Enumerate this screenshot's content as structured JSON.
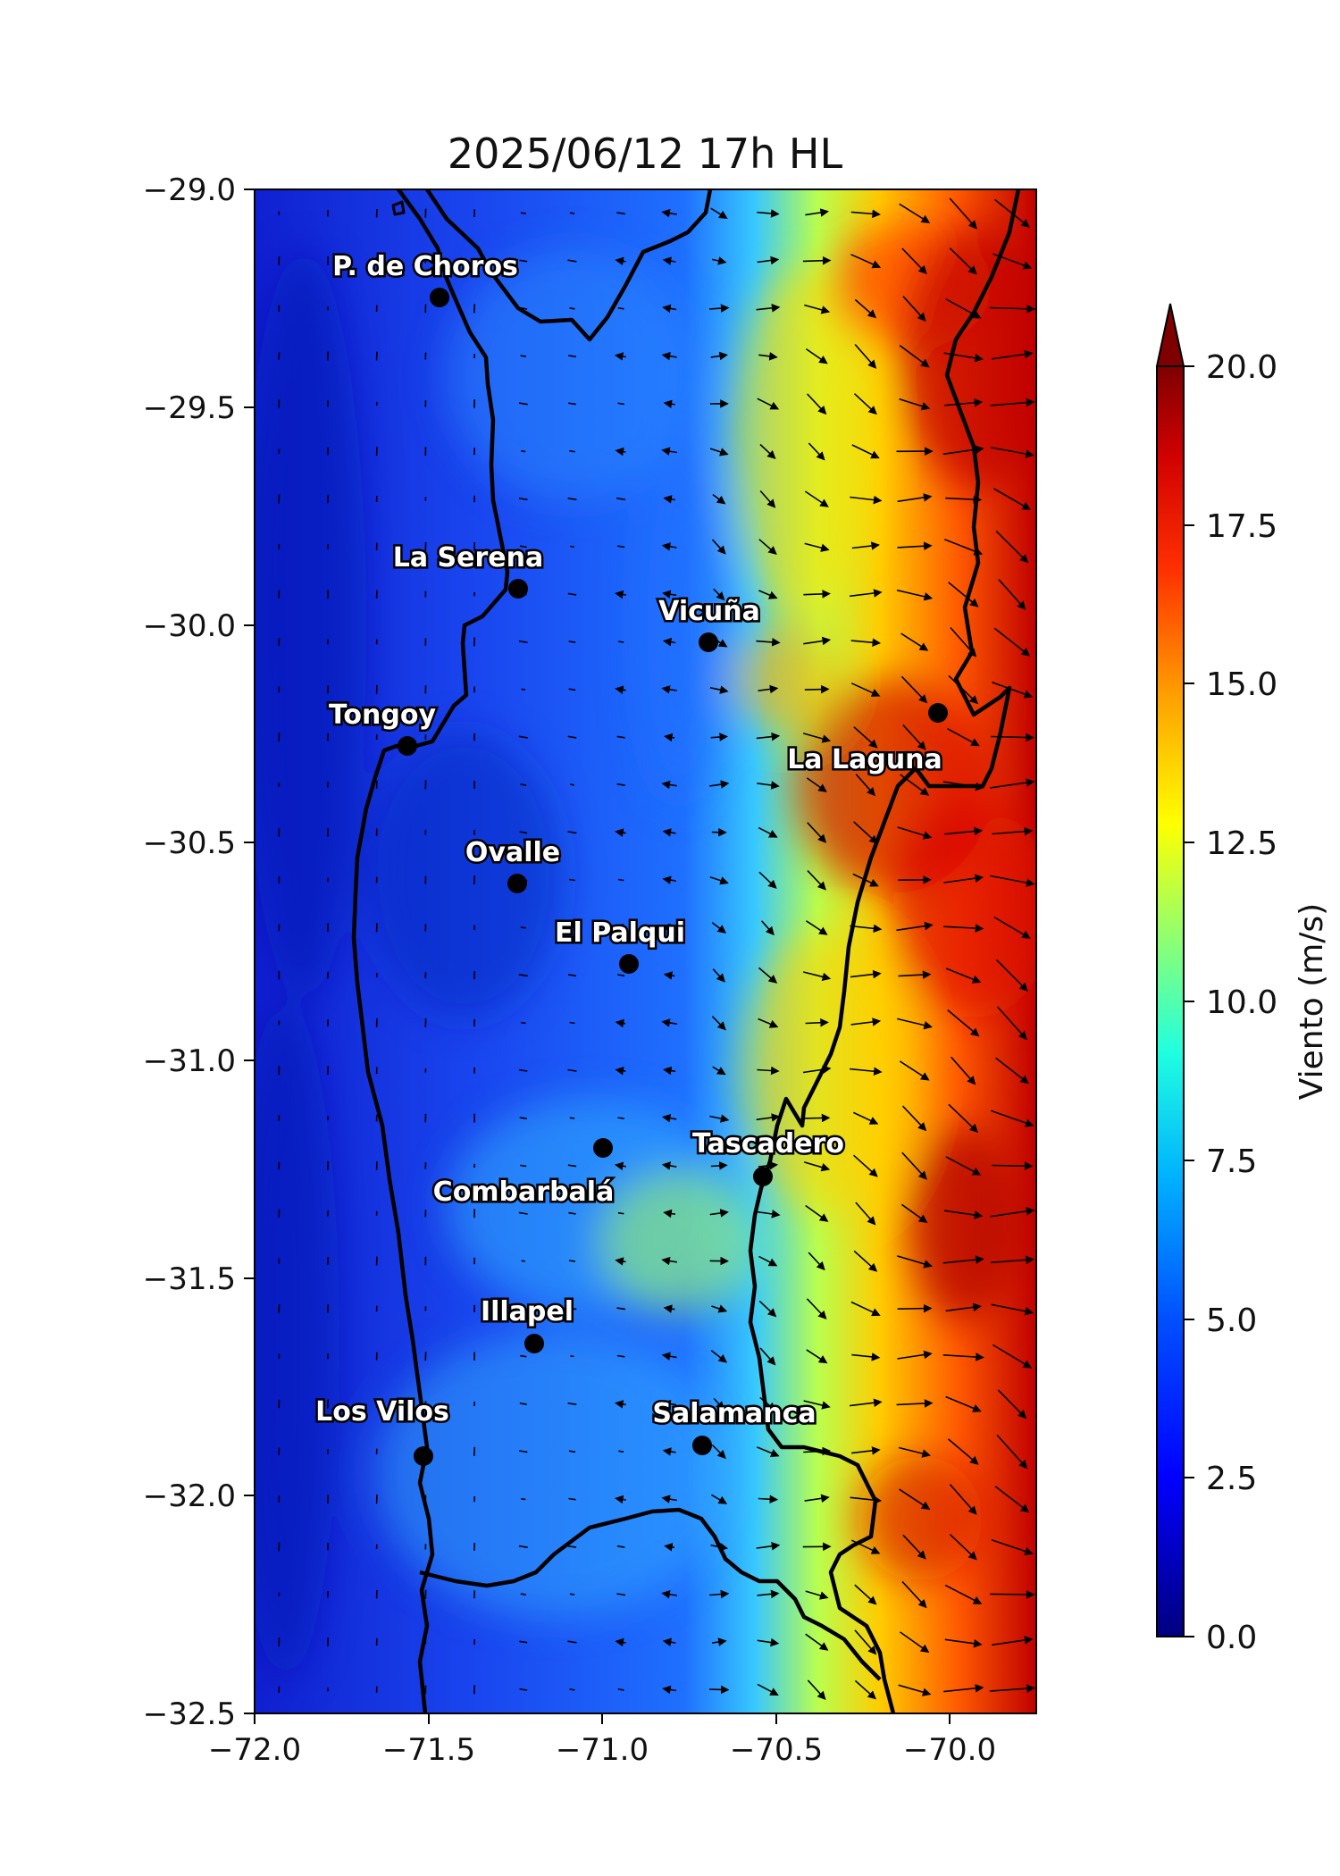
{
  "title": "2025/06/12 17h HL",
  "axes": {
    "lon_range": [
      -72.0,
      -69.75
    ],
    "lat_range": [
      -32.5,
      -29.0
    ],
    "x_ticks": [
      {
        "value": -72.0,
        "label": "−72.0"
      },
      {
        "value": -71.5,
        "label": "−71.5"
      },
      {
        "value": -71.0,
        "label": "−71.0"
      },
      {
        "value": -70.5,
        "label": "−70.5"
      },
      {
        "value": -70.0,
        "label": "−70.0"
      }
    ],
    "y_ticks": [
      {
        "value": -29.0,
        "label": "−29.0"
      },
      {
        "value": -29.5,
        "label": "−29.5"
      },
      {
        "value": -30.0,
        "label": "−30.0"
      },
      {
        "value": -30.5,
        "label": "−30.5"
      },
      {
        "value": -31.0,
        "label": "−31.0"
      },
      {
        "value": -31.5,
        "label": "−31.5"
      },
      {
        "value": -32.0,
        "label": "−32.0"
      },
      {
        "value": -32.5,
        "label": "−32.5"
      }
    ]
  },
  "colorbar": {
    "label": "Viento (m/s)",
    "range": [
      0,
      20
    ],
    "extend": "max",
    "ticks": [
      {
        "value": 0,
        "label": "0.0"
      },
      {
        "value": 2.5,
        "label": "2.5"
      },
      {
        "value": 5,
        "label": "5.0"
      },
      {
        "value": 7.5,
        "label": "7.5"
      },
      {
        "value": 10,
        "label": "10.0"
      },
      {
        "value": 12.5,
        "label": "12.5"
      },
      {
        "value": 15,
        "label": "15.0"
      },
      {
        "value": 17.5,
        "label": "17.5"
      },
      {
        "value": 20,
        "label": "20.0"
      }
    ],
    "colormap": [
      "#00007f",
      "#0000ff",
      "#007fff",
      "#00ffff",
      "#7fff7f",
      "#ffff00",
      "#ff7f00",
      "#ff0000",
      "#7f0000"
    ]
  },
  "cities": [
    {
      "name": "P. de Choros",
      "lon": -71.47,
      "lat": -29.25
    },
    {
      "name": "La Serena",
      "lon": -71.24,
      "lat": -29.91
    },
    {
      "name": "Vicuña",
      "lon": -70.7,
      "lat": -30.04
    },
    {
      "name": "Tongoy",
      "lon": -71.56,
      "lat": -30.27
    },
    {
      "name": "La Laguna",
      "lon": -70.04,
      "lat": -30.2
    },
    {
      "name": "Ovalle",
      "lon": -71.25,
      "lat": -30.59
    },
    {
      "name": "El Palqui",
      "lon": -70.93,
      "lat": -30.77
    },
    {
      "name": "Tascadero",
      "lon": -70.54,
      "lat": -31.26
    },
    {
      "name": "Combarbalá",
      "lon": -71.0,
      "lat": -31.2
    },
    {
      "name": "Illapel",
      "lon": -71.2,
      "lat": -31.65
    },
    {
      "name": "Los Vilos",
      "lon": -71.52,
      "lat": -31.91
    },
    {
      "name": "Salamanca",
      "lon": -70.72,
      "lat": -31.89
    }
  ]
}
